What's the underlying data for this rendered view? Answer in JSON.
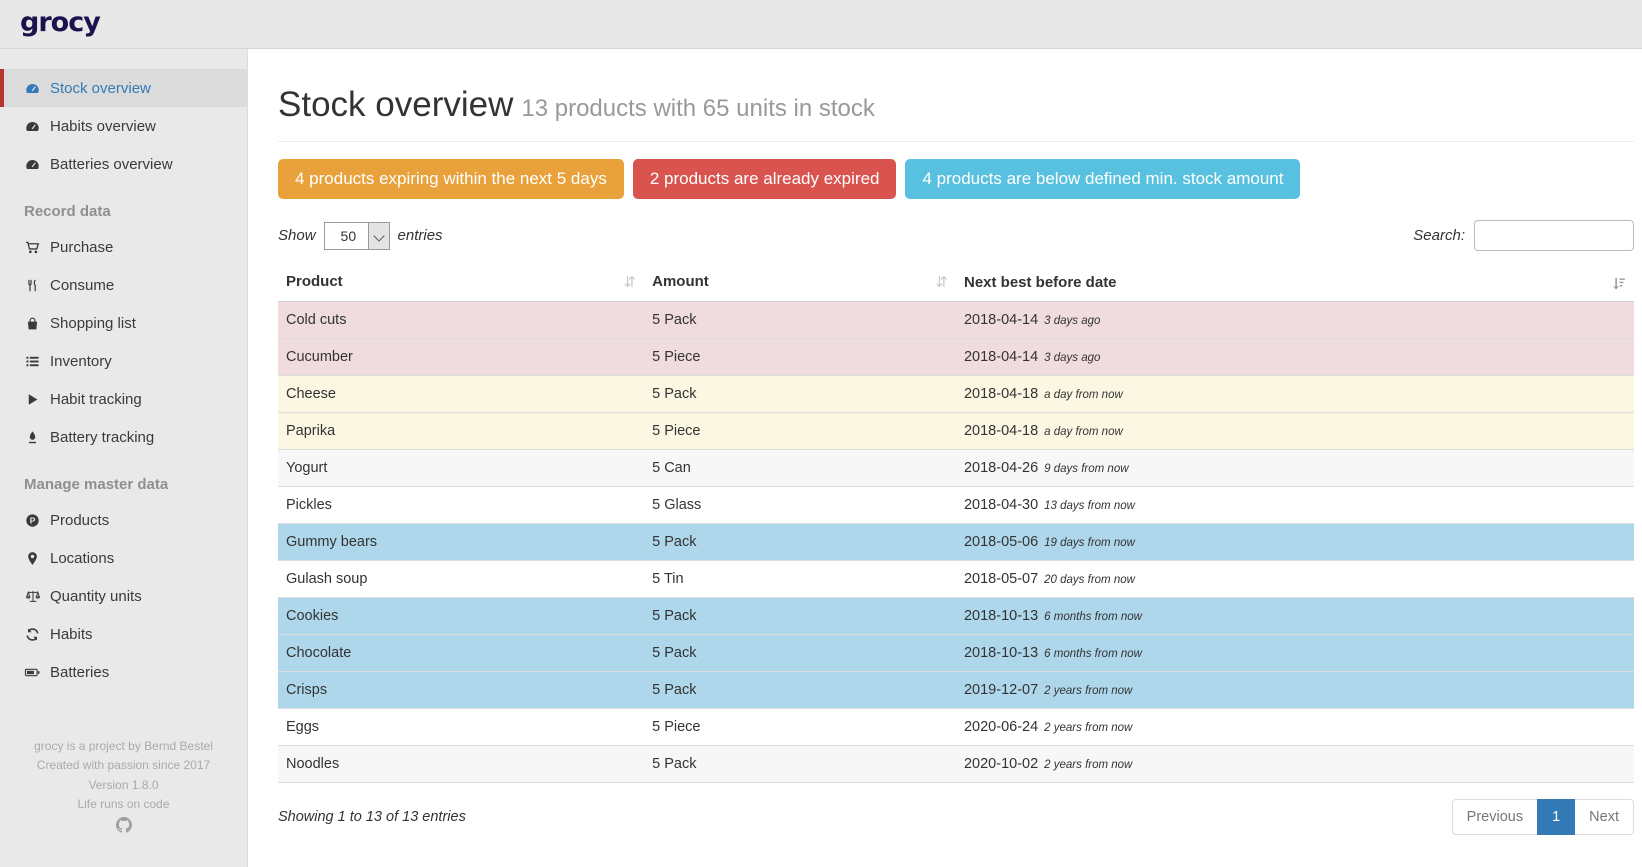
{
  "logo": "grocy",
  "sidebar": {
    "groups": [
      {
        "header": "",
        "items": [
          {
            "label": "Stock overview",
            "icon": "gauge-icon",
            "active": true
          },
          {
            "label": "Habits overview",
            "icon": "gauge-icon",
            "active": false
          },
          {
            "label": "Batteries overview",
            "icon": "gauge-icon",
            "active": false
          }
        ]
      },
      {
        "header": "Record data",
        "items": [
          {
            "label": "Purchase",
            "icon": "cart-icon",
            "active": false
          },
          {
            "label": "Consume",
            "icon": "utensils-icon",
            "active": false
          },
          {
            "label": "Shopping list",
            "icon": "shopping-bag-icon",
            "active": false
          },
          {
            "label": "Inventory",
            "icon": "list-icon",
            "active": false
          },
          {
            "label": "Habit tracking",
            "icon": "play-icon",
            "active": false
          },
          {
            "label": "Battery tracking",
            "icon": "pen-icon",
            "active": false
          }
        ]
      },
      {
        "header": "Manage master data",
        "items": [
          {
            "label": "Products",
            "icon": "product-icon",
            "active": false
          },
          {
            "label": "Locations",
            "icon": "map-marker-icon",
            "active": false
          },
          {
            "label": "Quantity units",
            "icon": "scale-icon",
            "active": false
          },
          {
            "label": "Habits",
            "icon": "sync-icon",
            "active": false
          },
          {
            "label": "Batteries",
            "icon": "battery-icon",
            "active": false
          }
        ]
      }
    ],
    "footer_lines": [
      "grocy is a project by Bernd Bestel",
      "Created with passion since 2017",
      "Version 1.8.0",
      "Life runs on code"
    ]
  },
  "page": {
    "title": "Stock overview",
    "subtitle": "13 products with 65 units in stock"
  },
  "alerts": [
    {
      "text": "4 products expiring within the next 5 days",
      "color": "#e9a13b",
      "type": "warning"
    },
    {
      "text": "2 products are already expired",
      "color": "#d9534f",
      "type": "danger"
    },
    {
      "text": "4 products are below defined min. stock amount",
      "color": "#57c1df",
      "type": "info"
    }
  ],
  "table_controls": {
    "show_label": "Show",
    "entries_label": "entries",
    "page_length": "50",
    "search_label": "Search:",
    "search_value": ""
  },
  "table": {
    "columns": [
      "Product",
      "Amount",
      "Next best before date"
    ],
    "sort_glyph": "⇵",
    "rows": [
      {
        "product": "Cold cuts",
        "amount": "5 Pack",
        "date": "2018-04-14",
        "timeago": "3 days ago",
        "status": "danger"
      },
      {
        "product": "Cucumber",
        "amount": "5 Piece",
        "date": "2018-04-14",
        "timeago": "3 days ago",
        "status": "danger"
      },
      {
        "product": "Cheese",
        "amount": "5 Pack",
        "date": "2018-04-18",
        "timeago": "a day from now",
        "status": "warning"
      },
      {
        "product": "Paprika",
        "amount": "5 Piece",
        "date": "2018-04-18",
        "timeago": "a day from now",
        "status": "warning"
      },
      {
        "product": "Yogurt",
        "amount": "5 Can",
        "date": "2018-04-26",
        "timeago": "9 days from now",
        "status": "stripe"
      },
      {
        "product": "Pickles",
        "amount": "5 Glass",
        "date": "2018-04-30",
        "timeago": "13 days from now",
        "status": "none"
      },
      {
        "product": "Gummy bears",
        "amount": "5 Pack",
        "date": "2018-05-06",
        "timeago": "19 days from now",
        "status": "info"
      },
      {
        "product": "Gulash soup",
        "amount": "5 Tin",
        "date": "2018-05-07",
        "timeago": "20 days from now",
        "status": "none"
      },
      {
        "product": "Cookies",
        "amount": "5 Pack",
        "date": "2018-10-13",
        "timeago": "6 months from now",
        "status": "info"
      },
      {
        "product": "Chocolate",
        "amount": "5 Pack",
        "date": "2018-10-13",
        "timeago": "6 months from now",
        "status": "info"
      },
      {
        "product": "Crisps",
        "amount": "5 Pack",
        "date": "2019-12-07",
        "timeago": "2 years from now",
        "status": "info"
      },
      {
        "product": "Eggs",
        "amount": "5 Piece",
        "date": "2020-06-24",
        "timeago": "2 years from now",
        "status": "none"
      },
      {
        "product": "Noodles",
        "amount": "5 Pack",
        "date": "2020-10-02",
        "timeago": "2 years from now",
        "status": "stripe"
      }
    ]
  },
  "table_footer": {
    "info": "Showing 1 to 13 of 13 entries",
    "pagination": {
      "previous": "Previous",
      "page": "1",
      "next": "Next"
    }
  },
  "colors": {
    "sidebar_active_accent": "#b7342e",
    "link_active": "#337ab7",
    "row_danger": "#f0dcde",
    "row_warning": "#fbf7e3",
    "row_info": "#aed7eb",
    "pagination_active": "#337ab7"
  }
}
